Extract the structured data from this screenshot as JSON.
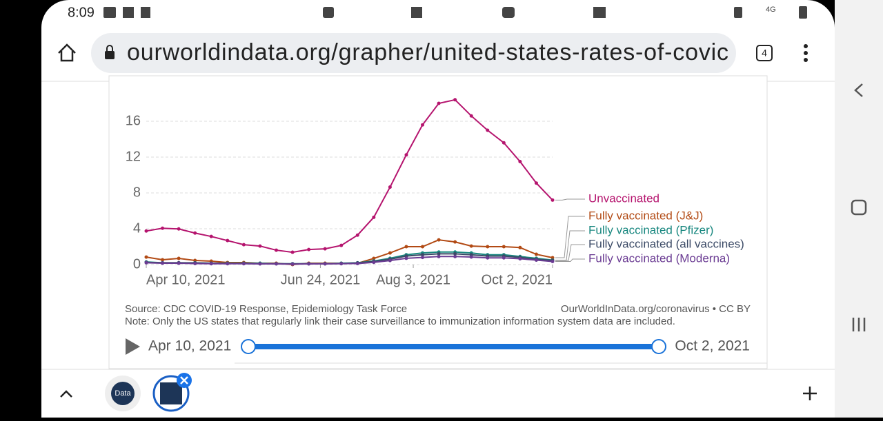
{
  "status_bar": {
    "time": "8:09",
    "network": "4G"
  },
  "address_bar": {
    "url": "ourworldindata.org/grapher/united-states-rates-of-covic",
    "tab_count": "4"
  },
  "chart_data": {
    "type": "line",
    "x": [
      "2021-04-10",
      "2021-04-17",
      "2021-04-24",
      "2021-05-01",
      "2021-05-08",
      "2021-05-15",
      "2021-05-22",
      "2021-05-29",
      "2021-06-05",
      "2021-06-12",
      "2021-06-19",
      "2021-06-26",
      "2021-07-03",
      "2021-07-10",
      "2021-07-17",
      "2021-07-24",
      "2021-07-31",
      "2021-08-07",
      "2021-08-14",
      "2021-08-21",
      "2021-08-28",
      "2021-09-04",
      "2021-09-11",
      "2021-09-18",
      "2021-09-25",
      "2021-10-02"
    ],
    "xlim": [
      "2021-04-10",
      "2021-10-02"
    ],
    "xticks": [
      {
        "value": "2021-04-10",
        "label": "Apr 10, 2021"
      },
      {
        "value": "2021-06-24",
        "label": "Jun 24, 2021"
      },
      {
        "value": "2021-08-03",
        "label": "Aug 3, 2021"
      },
      {
        "value": "2021-10-02",
        "label": "Oct 2, 2021"
      }
    ],
    "ylim": [
      0,
      18
    ],
    "yticks": [
      0,
      4,
      8,
      12,
      16
    ],
    "grid": true,
    "series": [
      {
        "name": "Unvaccinated",
        "color": "#b5146e",
        "values": [
          3.75,
          4.06,
          3.98,
          3.52,
          3.14,
          2.68,
          2.22,
          2.07,
          1.61,
          1.38,
          1.68,
          1.76,
          2.14,
          3.29,
          5.28,
          8.65,
          12.25,
          15.6,
          18.0,
          18.4,
          16.6,
          15.0,
          13.6,
          11.5,
          9.1,
          7.2
        ]
      },
      {
        "name": "Fully vaccinated (J&J)",
        "color": "#b24a14",
        "values": [
          0.84,
          0.54,
          0.69,
          0.46,
          0.38,
          0.23,
          0.23,
          0.15,
          0.15,
          0,
          0.15,
          0.15,
          0.15,
          0.15,
          0.69,
          1.3,
          2.0,
          2.0,
          2.76,
          2.53,
          2.07,
          2.0,
          2.0,
          1.9,
          1.15,
          0.77
        ]
      },
      {
        "name": "Fully vaccinated (Pfizer)",
        "color": "#18877f",
        "values": [
          0.3,
          0.2,
          0.2,
          0.2,
          0.15,
          0.15,
          0.15,
          0.15,
          0.1,
          0.1,
          0.1,
          0.1,
          0.15,
          0.2,
          0.4,
          0.7,
          1.1,
          1.3,
          1.4,
          1.4,
          1.3,
          1.1,
          1.1,
          0.9,
          0.7,
          0.5
        ]
      },
      {
        "name": "Fully vaccinated (all vaccines)",
        "color": "#3b4a66",
        "values": [
          0.25,
          0.2,
          0.2,
          0.18,
          0.15,
          0.12,
          0.12,
          0.1,
          0.1,
          0.08,
          0.1,
          0.1,
          0.12,
          0.18,
          0.35,
          0.6,
          0.95,
          1.1,
          1.2,
          1.2,
          1.1,
          0.95,
          0.95,
          0.8,
          0.6,
          0.45
        ]
      },
      {
        "name": "Fully vaccinated (Moderna)",
        "color": "#6b3c93",
        "values": [
          0.2,
          0.15,
          0.15,
          0.12,
          0.1,
          0.1,
          0.1,
          0.08,
          0.08,
          0.05,
          0.08,
          0.08,
          0.1,
          0.12,
          0.25,
          0.45,
          0.7,
          0.8,
          0.9,
          0.9,
          0.85,
          0.75,
          0.75,
          0.65,
          0.5,
          0.35
        ]
      }
    ]
  },
  "footer": {
    "source": "Source: CDC COVID-19 Response, Epidemiology Task Force",
    "license": "OurWorldInData.org/coronavirus • CC BY",
    "note": "Note: Only the US states that regularly link their case surveillance to immunization information system data are included."
  },
  "timeline": {
    "start": "Apr 10, 2021",
    "end": "Oct 2, 2021"
  },
  "tabs": [
    {
      "label": "Data"
    }
  ]
}
